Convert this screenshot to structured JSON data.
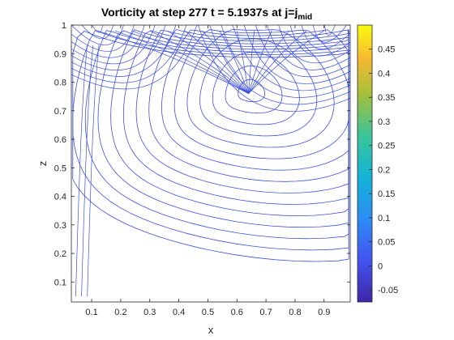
{
  "chart_data": {
    "type": "contour",
    "title": {
      "main": "Vorticity at step 277 t = 5.1937s at j=j",
      "subscript": "mid"
    },
    "xlabel": "x",
    "ylabel": "z",
    "xlim": [
      0.03,
      0.99
    ],
    "ylim": [
      0.03,
      1.0
    ],
    "x_ticks": [
      0.1,
      0.2,
      0.3,
      0.4,
      0.5,
      0.6,
      0.7,
      0.8,
      0.9
    ],
    "y_ticks": [
      0.1,
      0.2,
      0.3,
      0.4,
      0.5,
      0.6,
      0.7,
      0.8,
      0.9,
      1
    ],
    "grid": false,
    "colorbar": {
      "location": "right",
      "colormap": "parula",
      "range": [
        -0.075,
        0.5
      ],
      "ticks": [
        -0.05,
        0,
        0.05,
        0.1,
        0.15,
        0.2,
        0.25,
        0.3,
        0.35,
        0.4,
        0.45
      ]
    },
    "contour_color": "#3d4fe0",
    "features": {
      "vortex_center": [
        0.64,
        0.76
      ],
      "upper_corner_left": [
        0.12,
        0.97
      ],
      "upper_corner_right": [
        0.92,
        0.95
      ]
    }
  }
}
